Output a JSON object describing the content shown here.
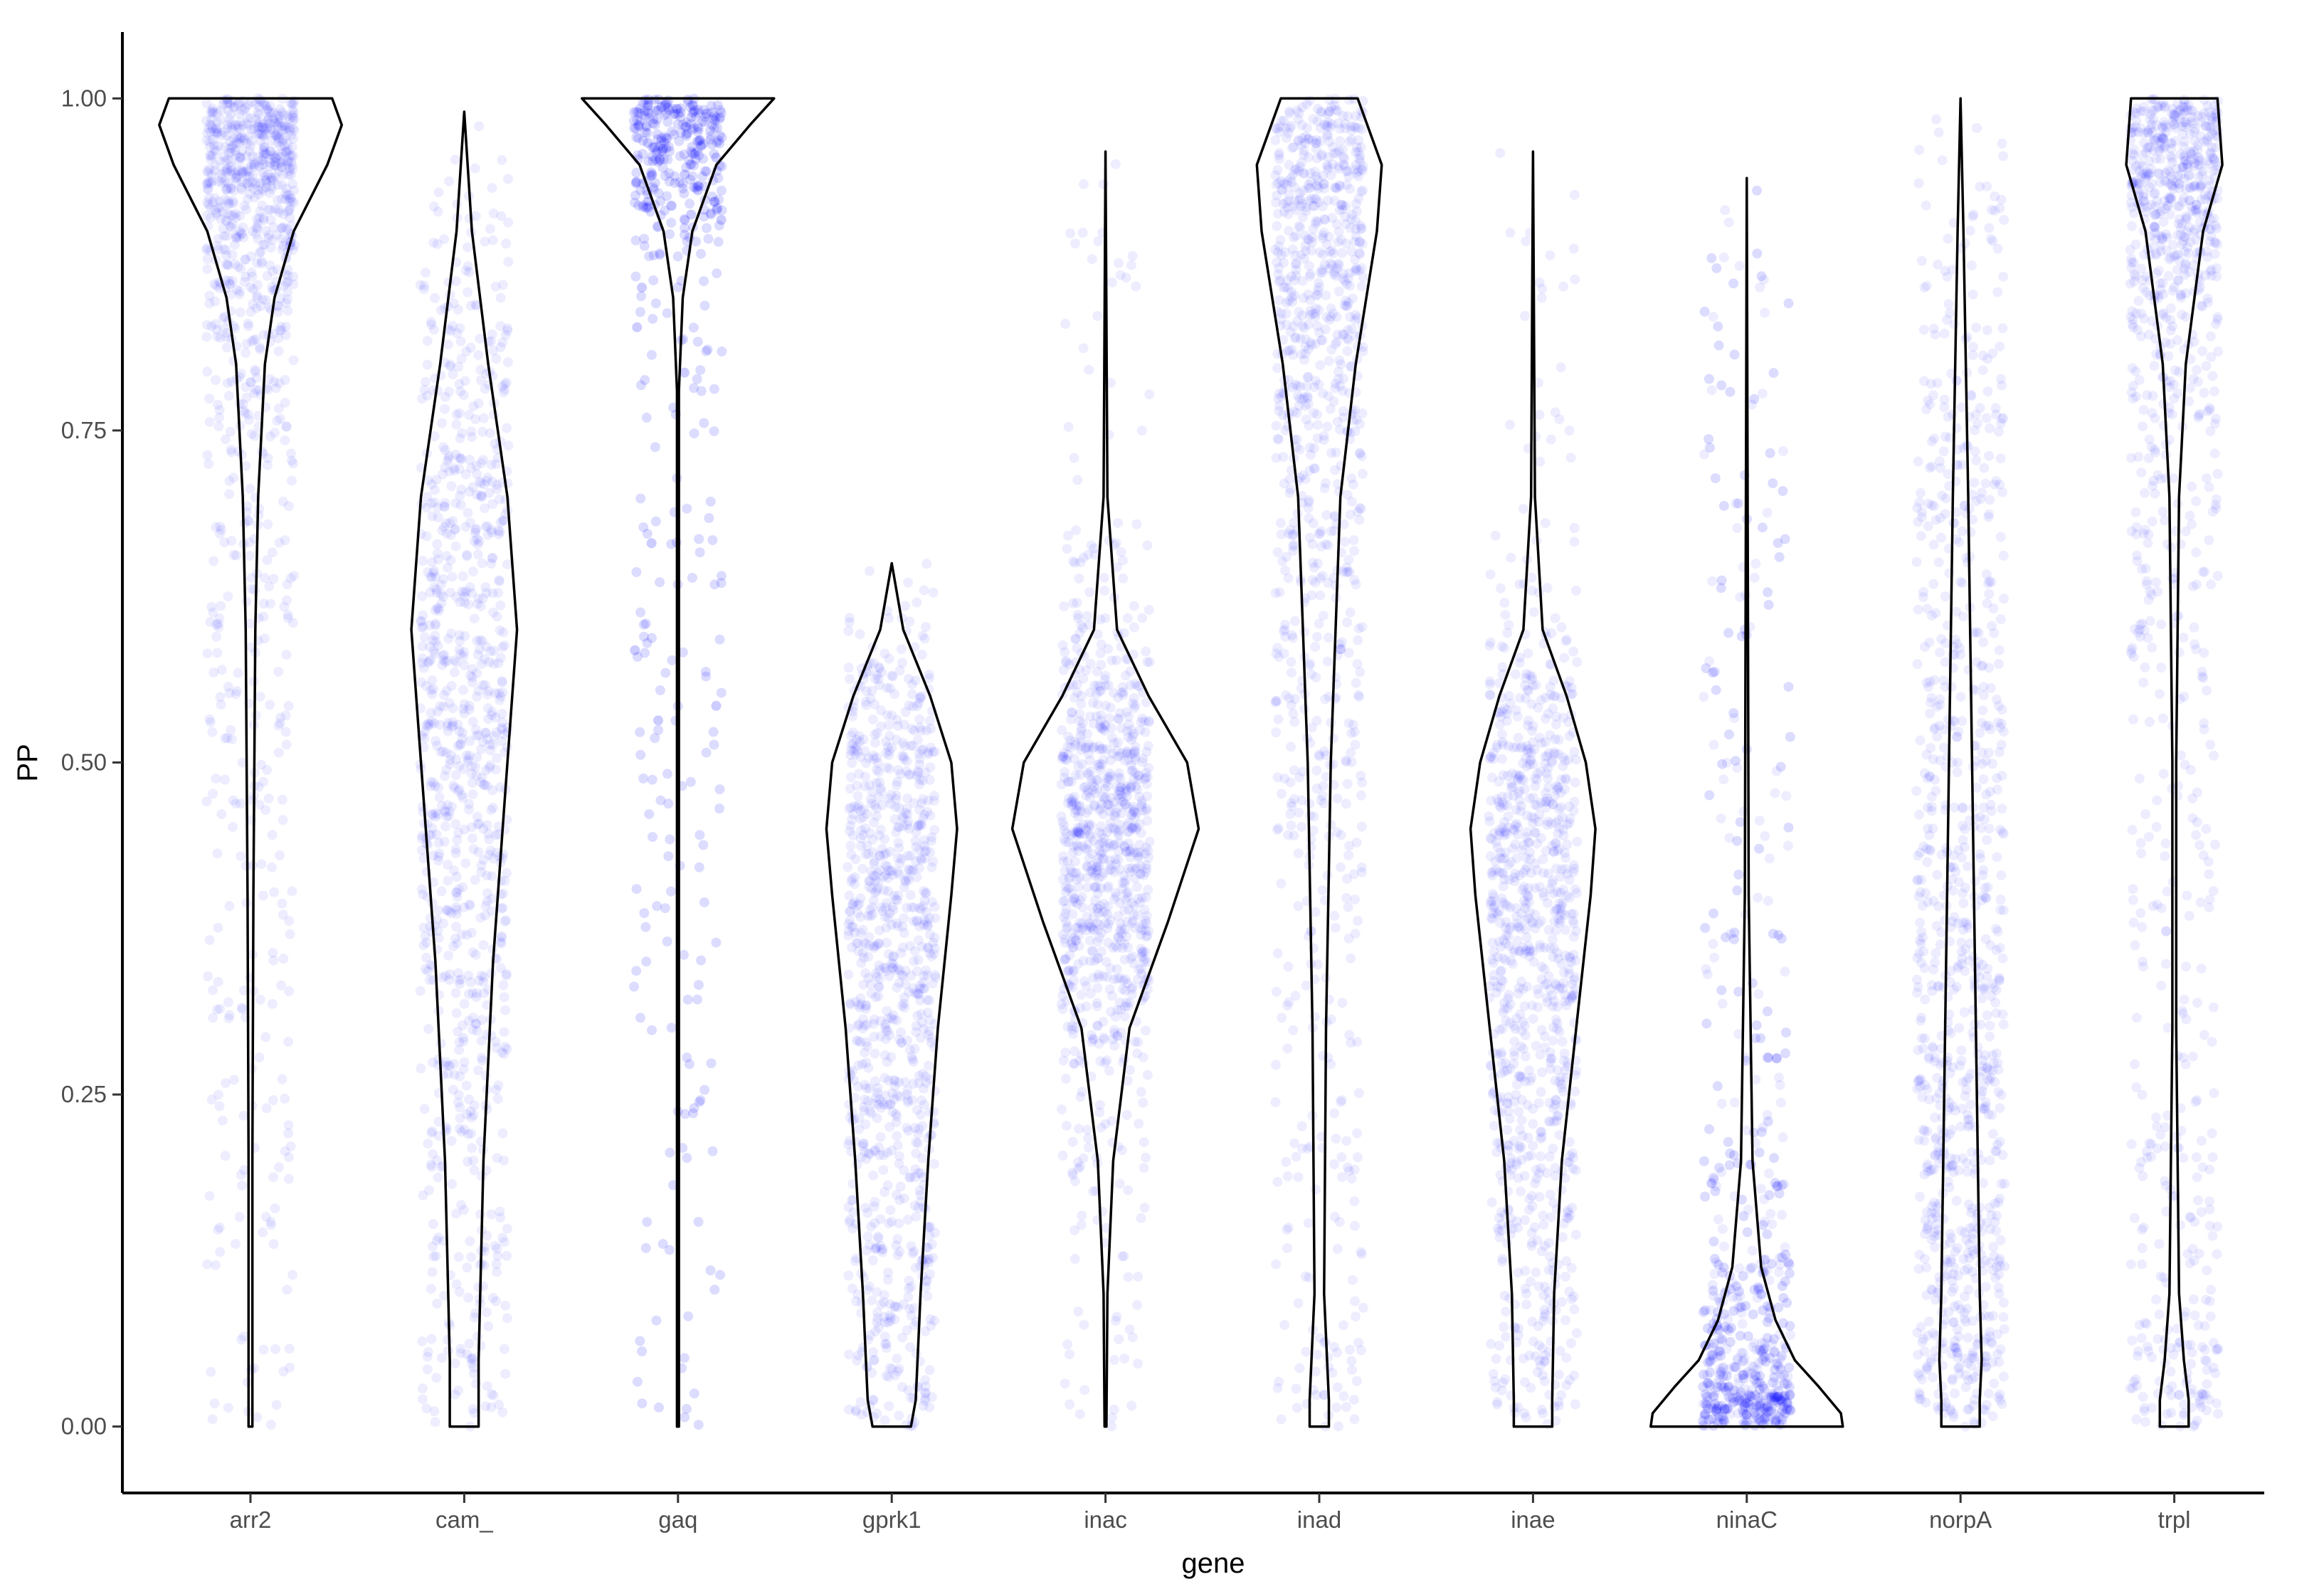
{
  "chart_data": {
    "type": "violin",
    "xlabel": "gene",
    "ylabel": "PP",
    "ylim": [
      -0.05,
      1.05
    ],
    "yticks": [
      0.0,
      0.25,
      0.5,
      0.75,
      1.0
    ],
    "ytick_labels": [
      "0.00",
      "0.25",
      "0.50",
      "0.75",
      "1.00"
    ],
    "grid": false,
    "point_color": "#0000ff",
    "outline_color": "#000000",
    "categories": [
      "arr2",
      "cam_",
      "gaq",
      "gprk1",
      "inac",
      "inad",
      "inae",
      "ninaC",
      "norpA",
      "trpl"
    ],
    "series": [
      {
        "name": "arr2",
        "min": 0.0,
        "max": 1.0,
        "violin": [
          [
            0.0,
            0.02
          ],
          [
            0.2,
            0.02
          ],
          [
            0.4,
            0.03
          ],
          [
            0.6,
            0.05
          ],
          [
            0.7,
            0.08
          ],
          [
            0.8,
            0.15
          ],
          [
            0.85,
            0.25
          ],
          [
            0.9,
            0.45
          ],
          [
            0.95,
            0.8
          ],
          [
            0.98,
            0.95
          ],
          [
            1.0,
            0.85
          ]
        ]
      },
      {
        "name": "cam_",
        "min": 0.0,
        "max": 0.99,
        "violin": [
          [
            0.0,
            0.15
          ],
          [
            0.01,
            0.15
          ],
          [
            0.05,
            0.15
          ],
          [
            0.2,
            0.2
          ],
          [
            0.35,
            0.3
          ],
          [
            0.5,
            0.45
          ],
          [
            0.6,
            0.55
          ],
          [
            0.7,
            0.45
          ],
          [
            0.8,
            0.25
          ],
          [
            0.9,
            0.08
          ],
          [
            0.99,
            0.0
          ]
        ]
      },
      {
        "name": "gaq",
        "min": 0.0,
        "max": 1.0,
        "violin": [
          [
            0.0,
            0.01
          ],
          [
            0.5,
            0.01
          ],
          [
            0.78,
            0.01
          ],
          [
            0.85,
            0.05
          ],
          [
            0.9,
            0.15
          ],
          [
            0.95,
            0.4
          ],
          [
            0.98,
            0.75
          ],
          [
            1.0,
            1.0
          ]
        ]
      },
      {
        "name": "gprk1",
        "min": 0.0,
        "max": 0.65,
        "violin": [
          [
            0.0,
            0.2
          ],
          [
            0.02,
            0.25
          ],
          [
            0.1,
            0.3
          ],
          [
            0.2,
            0.38
          ],
          [
            0.3,
            0.48
          ],
          [
            0.4,
            0.62
          ],
          [
            0.45,
            0.68
          ],
          [
            0.5,
            0.62
          ],
          [
            0.55,
            0.4
          ],
          [
            0.6,
            0.12
          ],
          [
            0.65,
            0.0
          ]
        ]
      },
      {
        "name": "inac",
        "min": 0.0,
        "max": 0.96,
        "violin": [
          [
            0.0,
            0.01
          ],
          [
            0.1,
            0.02
          ],
          [
            0.2,
            0.08
          ],
          [
            0.3,
            0.25
          ],
          [
            0.38,
            0.65
          ],
          [
            0.45,
            0.97
          ],
          [
            0.5,
            0.85
          ],
          [
            0.55,
            0.45
          ],
          [
            0.6,
            0.12
          ],
          [
            0.7,
            0.02
          ],
          [
            0.96,
            0.0
          ]
        ]
      },
      {
        "name": "inad",
        "min": 0.0,
        "max": 1.0,
        "violin": [
          [
            0.0,
            0.1
          ],
          [
            0.02,
            0.1
          ],
          [
            0.1,
            0.05
          ],
          [
            0.3,
            0.07
          ],
          [
            0.5,
            0.12
          ],
          [
            0.7,
            0.22
          ],
          [
            0.8,
            0.38
          ],
          [
            0.9,
            0.6
          ],
          [
            0.95,
            0.65
          ],
          [
            1.0,
            0.4
          ]
        ]
      },
      {
        "name": "inae",
        "min": 0.0,
        "max": 0.96,
        "violin": [
          [
            0.0,
            0.2
          ],
          [
            0.02,
            0.2
          ],
          [
            0.1,
            0.22
          ],
          [
            0.2,
            0.3
          ],
          [
            0.3,
            0.45
          ],
          [
            0.4,
            0.6
          ],
          [
            0.45,
            0.65
          ],
          [
            0.5,
            0.55
          ],
          [
            0.55,
            0.35
          ],
          [
            0.6,
            0.1
          ],
          [
            0.7,
            0.02
          ],
          [
            0.96,
            0.0
          ]
        ]
      },
      {
        "name": "ninaC",
        "min": 0.0,
        "max": 0.94,
        "violin": [
          [
            0.0,
            1.0
          ],
          [
            0.01,
            0.98
          ],
          [
            0.03,
            0.75
          ],
          [
            0.05,
            0.5
          ],
          [
            0.08,
            0.3
          ],
          [
            0.12,
            0.15
          ],
          [
            0.2,
            0.06
          ],
          [
            0.4,
            0.02
          ],
          [
            0.94,
            0.0
          ]
        ]
      },
      {
        "name": "norpA",
        "min": 0.0,
        "max": 1.0,
        "violin": [
          [
            0.0,
            0.2
          ],
          [
            0.02,
            0.2
          ],
          [
            0.05,
            0.22
          ],
          [
            0.1,
            0.2
          ],
          [
            0.3,
            0.16
          ],
          [
            0.5,
            0.12
          ],
          [
            0.7,
            0.08
          ],
          [
            0.9,
            0.03
          ],
          [
            1.0,
            0.0
          ]
        ]
      },
      {
        "name": "trpl",
        "min": 0.0,
        "max": 1.0,
        "violin": [
          [
            0.0,
            0.15
          ],
          [
            0.02,
            0.15
          ],
          [
            0.05,
            0.1
          ],
          [
            0.1,
            0.05
          ],
          [
            0.3,
            0.02
          ],
          [
            0.5,
            0.02
          ],
          [
            0.7,
            0.05
          ],
          [
            0.8,
            0.12
          ],
          [
            0.9,
            0.3
          ],
          [
            0.95,
            0.5
          ],
          [
            1.0,
            0.45
          ]
        ]
      }
    ]
  }
}
